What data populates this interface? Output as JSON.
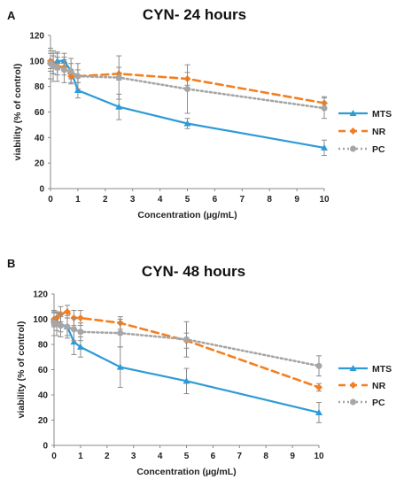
{
  "chart_data": [
    {
      "panel_label": "A",
      "type": "line",
      "title": "CYN- 24 hours",
      "xlabel": "Concentration (µg/mL)",
      "ylabel": "viability (% of control)",
      "xlim": [
        0,
        10
      ],
      "ylim": [
        0,
        120
      ],
      "xticks": [
        "0",
        "1",
        "2",
        "3",
        "4",
        "5",
        "6",
        "7",
        "8",
        "9",
        "10"
      ],
      "yticks": [
        "0",
        "20",
        "40",
        "60",
        "80",
        "100",
        "120"
      ],
      "grid": false,
      "legend": "right",
      "series": [
        {
          "name": "MTS",
          "color": "#2E9BD6",
          "line": "solid",
          "marker": "triangle",
          "x": [
            0,
            0.1,
            0.25,
            0.5,
            0.75,
            1,
            2.5,
            5,
            10
          ],
          "y": [
            100,
            98,
            100,
            100,
            92,
            77,
            64,
            51,
            32
          ],
          "err": [
            6,
            8,
            7,
            6,
            6,
            6,
            10,
            4,
            6
          ]
        },
        {
          "name": "NR",
          "color": "#F47F20",
          "line": "dash",
          "marker": "diamond",
          "x": [
            0,
            0.1,
            0.25,
            0.5,
            0.75,
            1,
            2.5,
            5,
            10
          ],
          "y": [
            100,
            97,
            96,
            95,
            88,
            88,
            90,
            86,
            67
          ],
          "err": [
            8,
            7,
            7,
            6,
            5,
            5,
            5,
            5,
            5
          ]
        },
        {
          "name": "PC",
          "color": "#A6A6A6",
          "line": "dot",
          "marker": "circle",
          "x": [
            0,
            0.1,
            0.25,
            0.5,
            0.75,
            1,
            2.5,
            5,
            10
          ],
          "y": [
            98,
            96,
            95,
            93,
            92,
            88,
            87,
            78,
            63
          ],
          "err": [
            12,
            12,
            11,
            10,
            10,
            10,
            17,
            19,
            8
          ]
        }
      ]
    },
    {
      "panel_label": "B",
      "type": "line",
      "title": "CYN- 48 hours",
      "xlabel": "Concentration (µg/mL)",
      "ylabel": "viability (% of control)",
      "xlim": [
        0,
        10
      ],
      "ylim": [
        0,
        120
      ],
      "xticks": [
        "0",
        "1",
        "2",
        "3",
        "4",
        "5",
        "6",
        "7",
        "8",
        "9",
        "10"
      ],
      "yticks": [
        "0",
        "20",
        "40",
        "60",
        "80",
        "100",
        "120"
      ],
      "grid": false,
      "legend": "right",
      "series": [
        {
          "name": "MTS",
          "color": "#2E9BD6",
          "line": "solid",
          "marker": "triangle",
          "x": [
            0,
            0.1,
            0.25,
            0.5,
            0.75,
            1,
            2.5,
            5,
            10
          ],
          "y": [
            100,
            98,
            96,
            94,
            82,
            78,
            62,
            51,
            26
          ],
          "err": [
            6,
            7,
            6,
            7,
            10,
            8,
            16,
            10,
            8
          ]
        },
        {
          "name": "NR",
          "color": "#F47F20",
          "line": "dash",
          "marker": "diamond",
          "x": [
            0,
            0.1,
            0.25,
            0.5,
            0.75,
            1,
            2.5,
            5,
            10
          ],
          "y": [
            100,
            101,
            104,
            106,
            101,
            101,
            97,
            83,
            46
          ],
          "err": [
            5,
            5,
            6,
            5,
            6,
            6,
            5,
            6,
            3
          ]
        },
        {
          "name": "PC",
          "color": "#A6A6A6",
          "line": "dot",
          "marker": "circle",
          "x": [
            0,
            0.1,
            0.25,
            0.5,
            0.75,
            1,
            2.5,
            5,
            10
          ],
          "y": [
            97,
            96,
            95,
            94,
            92,
            90,
            89,
            84,
            63
          ],
          "err": [
            10,
            9,
            9,
            9,
            9,
            7,
            11,
            14,
            8
          ]
        }
      ]
    }
  ]
}
